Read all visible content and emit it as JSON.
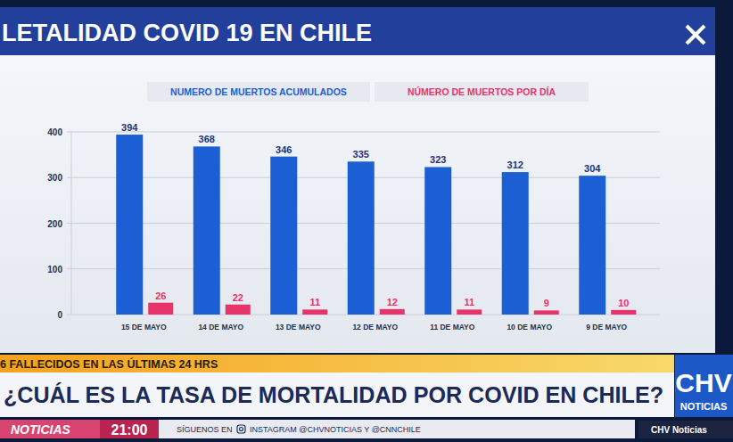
{
  "chart_data": {
    "type": "bar",
    "title": "LETALIDAD COVID 19 EN CHILE",
    "categories": [
      "15 DE MAYO",
      "14 DE MAYO",
      "13 DE MAYO",
      "12 DE MAYO",
      "11 DE MAYO",
      "10 DE MAYO",
      "9 DE MAYO"
    ],
    "series": [
      {
        "name": "NUMERO DE MUERTOS ACUMULADOS",
        "color": "#1c5fd4",
        "values": [
          394,
          368,
          346,
          335,
          323,
          312,
          304
        ]
      },
      {
        "name": "NÚMERO DE MUERTOS POR DÍA",
        "color": "#e8336b",
        "values": [
          26,
          22,
          11,
          12,
          11,
          9,
          10
        ]
      }
    ],
    "ylim": [
      0,
      400
    ],
    "yticks": [
      0,
      100,
      200,
      300,
      400
    ],
    "grid": true,
    "legend": "top",
    "data_labels": true
  },
  "overlay": {
    "ticker": "6 FALLECIDOS EN LAS ÚLTIMAS 24 HRS",
    "headline": "¿CUÁL ES LA TASA DE MORTALIDAD POR COVID EN CHILE?",
    "program": "NOTICIAS",
    "time": "21:00",
    "follow": "SÍGUENOS EN",
    "handles": "INSTAGRAM @CHVNOTICIAS Y @CNNCHILE",
    "logo": "CHV",
    "logo_sub": "NOTICIAS",
    "watermark": "CHV Noticias"
  }
}
